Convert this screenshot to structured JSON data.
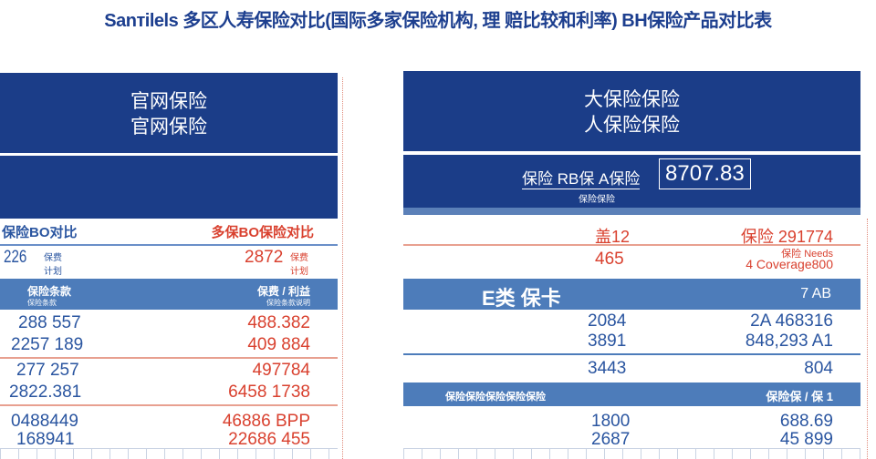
{
  "title": "Sanтilels 多区人寿保险对比(国际多家保险机构, 理 赔比较和利率) BH保险产品对比表",
  "colors": {
    "dark_blue": "#1b3d88",
    "mid_blue": "#4d7cba",
    "red": "#d9412f",
    "blue_text": "#2a55a0"
  },
  "left": {
    "header": [
      "官网保险",
      "官网保险"
    ],
    "row1": {
      "left": "保险BO对比",
      "right": "多保BO保险对比"
    },
    "row2": {
      "left": "226",
      "left_sub": "保费 计划",
      "right": "2872",
      "right_sub": "保费 计划"
    },
    "band": {
      "left": "保险条款",
      "left_sub": "保险条款",
      "right": "保费 / 利益",
      "right_sub": "保险条款说明"
    },
    "groups": [
      {
        "left": [
          "288 557",
          "2257 189"
        ],
        "right": [
          "488.382",
          "409 884"
        ]
      },
      {
        "left": [
          "277 257",
          "2822.381"
        ],
        "right": [
          "497784",
          "6458 1738"
        ]
      },
      {
        "left": [
          "0488449",
          "168941"
        ],
        "right": [
          "46886 BPP",
          "22686 455"
        ]
      }
    ]
  },
  "right": {
    "header": [
      "大保险保险",
      "人保险保险"
    ],
    "label": "保险 RB保 A保险",
    "value": "8707.83",
    "sub": "保险保险",
    "row1": {
      "left": "盖12",
      "right": "保险 291774"
    },
    "row2": {
      "left": "465",
      "right_top": "保险 Needs",
      "right": "4 Coverage800"
    },
    "band": {
      "left": "E类 保卡",
      "right": "7 AB"
    },
    "groups": [
      {
        "left": [
          "2084",
          "3891"
        ],
        "right": [
          "2A 468316",
          "848,293 A1"
        ]
      },
      {
        "left": [
          "3443"
        ],
        "right": [
          "804"
        ]
      }
    ],
    "band2": {
      "left": "保险保险保险保险保险",
      "right": "保险保 / 保 1"
    },
    "group3": {
      "left": [
        "1800",
        "2687"
      ],
      "right": [
        "688.69",
        "45 899"
      ]
    }
  }
}
